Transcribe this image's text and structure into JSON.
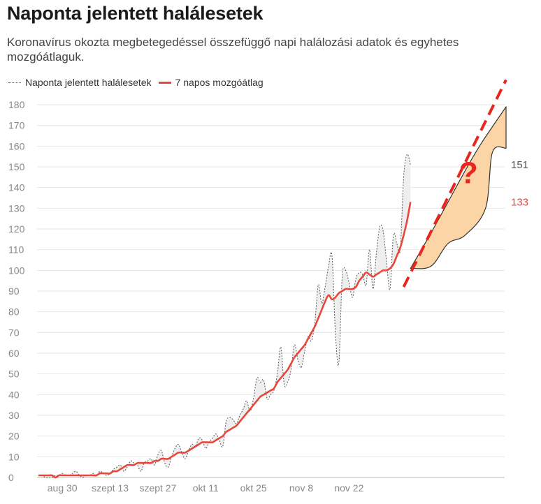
{
  "title": "Naponta jelentett halálesetek",
  "subtitle": "Koronavírus okozta megbetegedéssel összefüggő napi halálozási adatok és egyhetes mozgóátlaguk.",
  "legend": {
    "daily": "Naponta jelentett halálesetek",
    "avg": "7 napos mozgóátlag"
  },
  "colors": {
    "daily": "#555555",
    "avg": "#e8473c",
    "band": "#eeeeee",
    "projection": "#fbd5a6",
    "question": "#e8261e"
  },
  "annotation": {
    "question_mark": "?",
    "last_daily": "151",
    "last_avg": "133"
  },
  "chart_data": {
    "type": "line",
    "title": "Naponta jelentett halálesetek",
    "ylim": [
      0,
      180
    ],
    "yticks": [
      0,
      10,
      20,
      30,
      40,
      50,
      60,
      70,
      80,
      90,
      100,
      110,
      120,
      130,
      140,
      150,
      160,
      170,
      180
    ],
    "xtick_labels": [
      "aug 30",
      "szept 13",
      "szept 27",
      "okt 11",
      "okt 25",
      "nov 8",
      "nov 22"
    ],
    "grid": true,
    "legend_position": "top-left",
    "series": [
      {
        "name": "Naponta jelentett halálesetek",
        "style": "dotted",
        "values": [
          1,
          1,
          0,
          0,
          0,
          1,
          1,
          2,
          1,
          1,
          2,
          3,
          1,
          0,
          1,
          1,
          2,
          1,
          3,
          2,
          1,
          2,
          4,
          5,
          6,
          3,
          5,
          8,
          7,
          6,
          3,
          7,
          8,
          9,
          6,
          11,
          13,
          7,
          5,
          10,
          14,
          16,
          12,
          9,
          13,
          16,
          15,
          19,
          18,
          14,
          17,
          19,
          21,
          18,
          15,
          27,
          29,
          28,
          26,
          30,
          33,
          37,
          32,
          38,
          48,
          46,
          47,
          38,
          40,
          42,
          50,
          63,
          45,
          46,
          52,
          64,
          57,
          53,
          61,
          68,
          66,
          75,
          93,
          84,
          92,
          102,
          107,
          70,
          55,
          97,
          100,
          94,
          87,
          96,
          99,
          98,
          93,
          110,
          91,
          108,
          121,
          119,
          104,
          91,
          117,
          113,
          110,
          145,
          156,
          151
        ]
      },
      {
        "name": "7 napos mozgóátlag",
        "style": "solid",
        "values": [
          1,
          1,
          1,
          1,
          1,
          0,
          1,
          1,
          1,
          1,
          1,
          1,
          1,
          1,
          1,
          1,
          1,
          1,
          2,
          2,
          2,
          2,
          3,
          3,
          4,
          5,
          6,
          6,
          6,
          7,
          7,
          7,
          7,
          7,
          8,
          8,
          9,
          9,
          9,
          10,
          11,
          12,
          12,
          12,
          13,
          14,
          15,
          16,
          17,
          17,
          17,
          17,
          18,
          19,
          20,
          22,
          23,
          24,
          25,
          27,
          29,
          31,
          33,
          35,
          37,
          39,
          40,
          41,
          42,
          43,
          46,
          48,
          50,
          52,
          55,
          58,
          60,
          62,
          64,
          67,
          70,
          73,
          77,
          81,
          85,
          88,
          86,
          87,
          89,
          90,
          91,
          91,
          91,
          92,
          95,
          97,
          99,
          98,
          97,
          98,
          99,
          100,
          100,
          101,
          103,
          107,
          111,
          117,
          124,
          133
        ]
      }
    ],
    "projection": {
      "lower": [
        {
          "x": 109,
          "y": 101
        },
        {
          "x": 115,
          "y": 102
        },
        {
          "x": 120,
          "y": 113
        },
        {
          "x": 125,
          "y": 117
        },
        {
          "x": 131,
          "y": 130
        },
        {
          "x": 133,
          "y": 157
        },
        {
          "x": 137,
          "y": 159
        }
      ],
      "upper": [
        {
          "x": 109,
          "y": 101
        },
        {
          "x": 115,
          "y": 118
        },
        {
          "x": 120,
          "y": 133
        },
        {
          "x": 126,
          "y": 151
        },
        {
          "x": 130,
          "y": 162
        },
        {
          "x": 137,
          "y": 179
        }
      ],
      "dashed_trend": [
        {
          "x": 107,
          "y": 92
        },
        {
          "x": 137,
          "y": 192
        }
      ]
    }
  }
}
